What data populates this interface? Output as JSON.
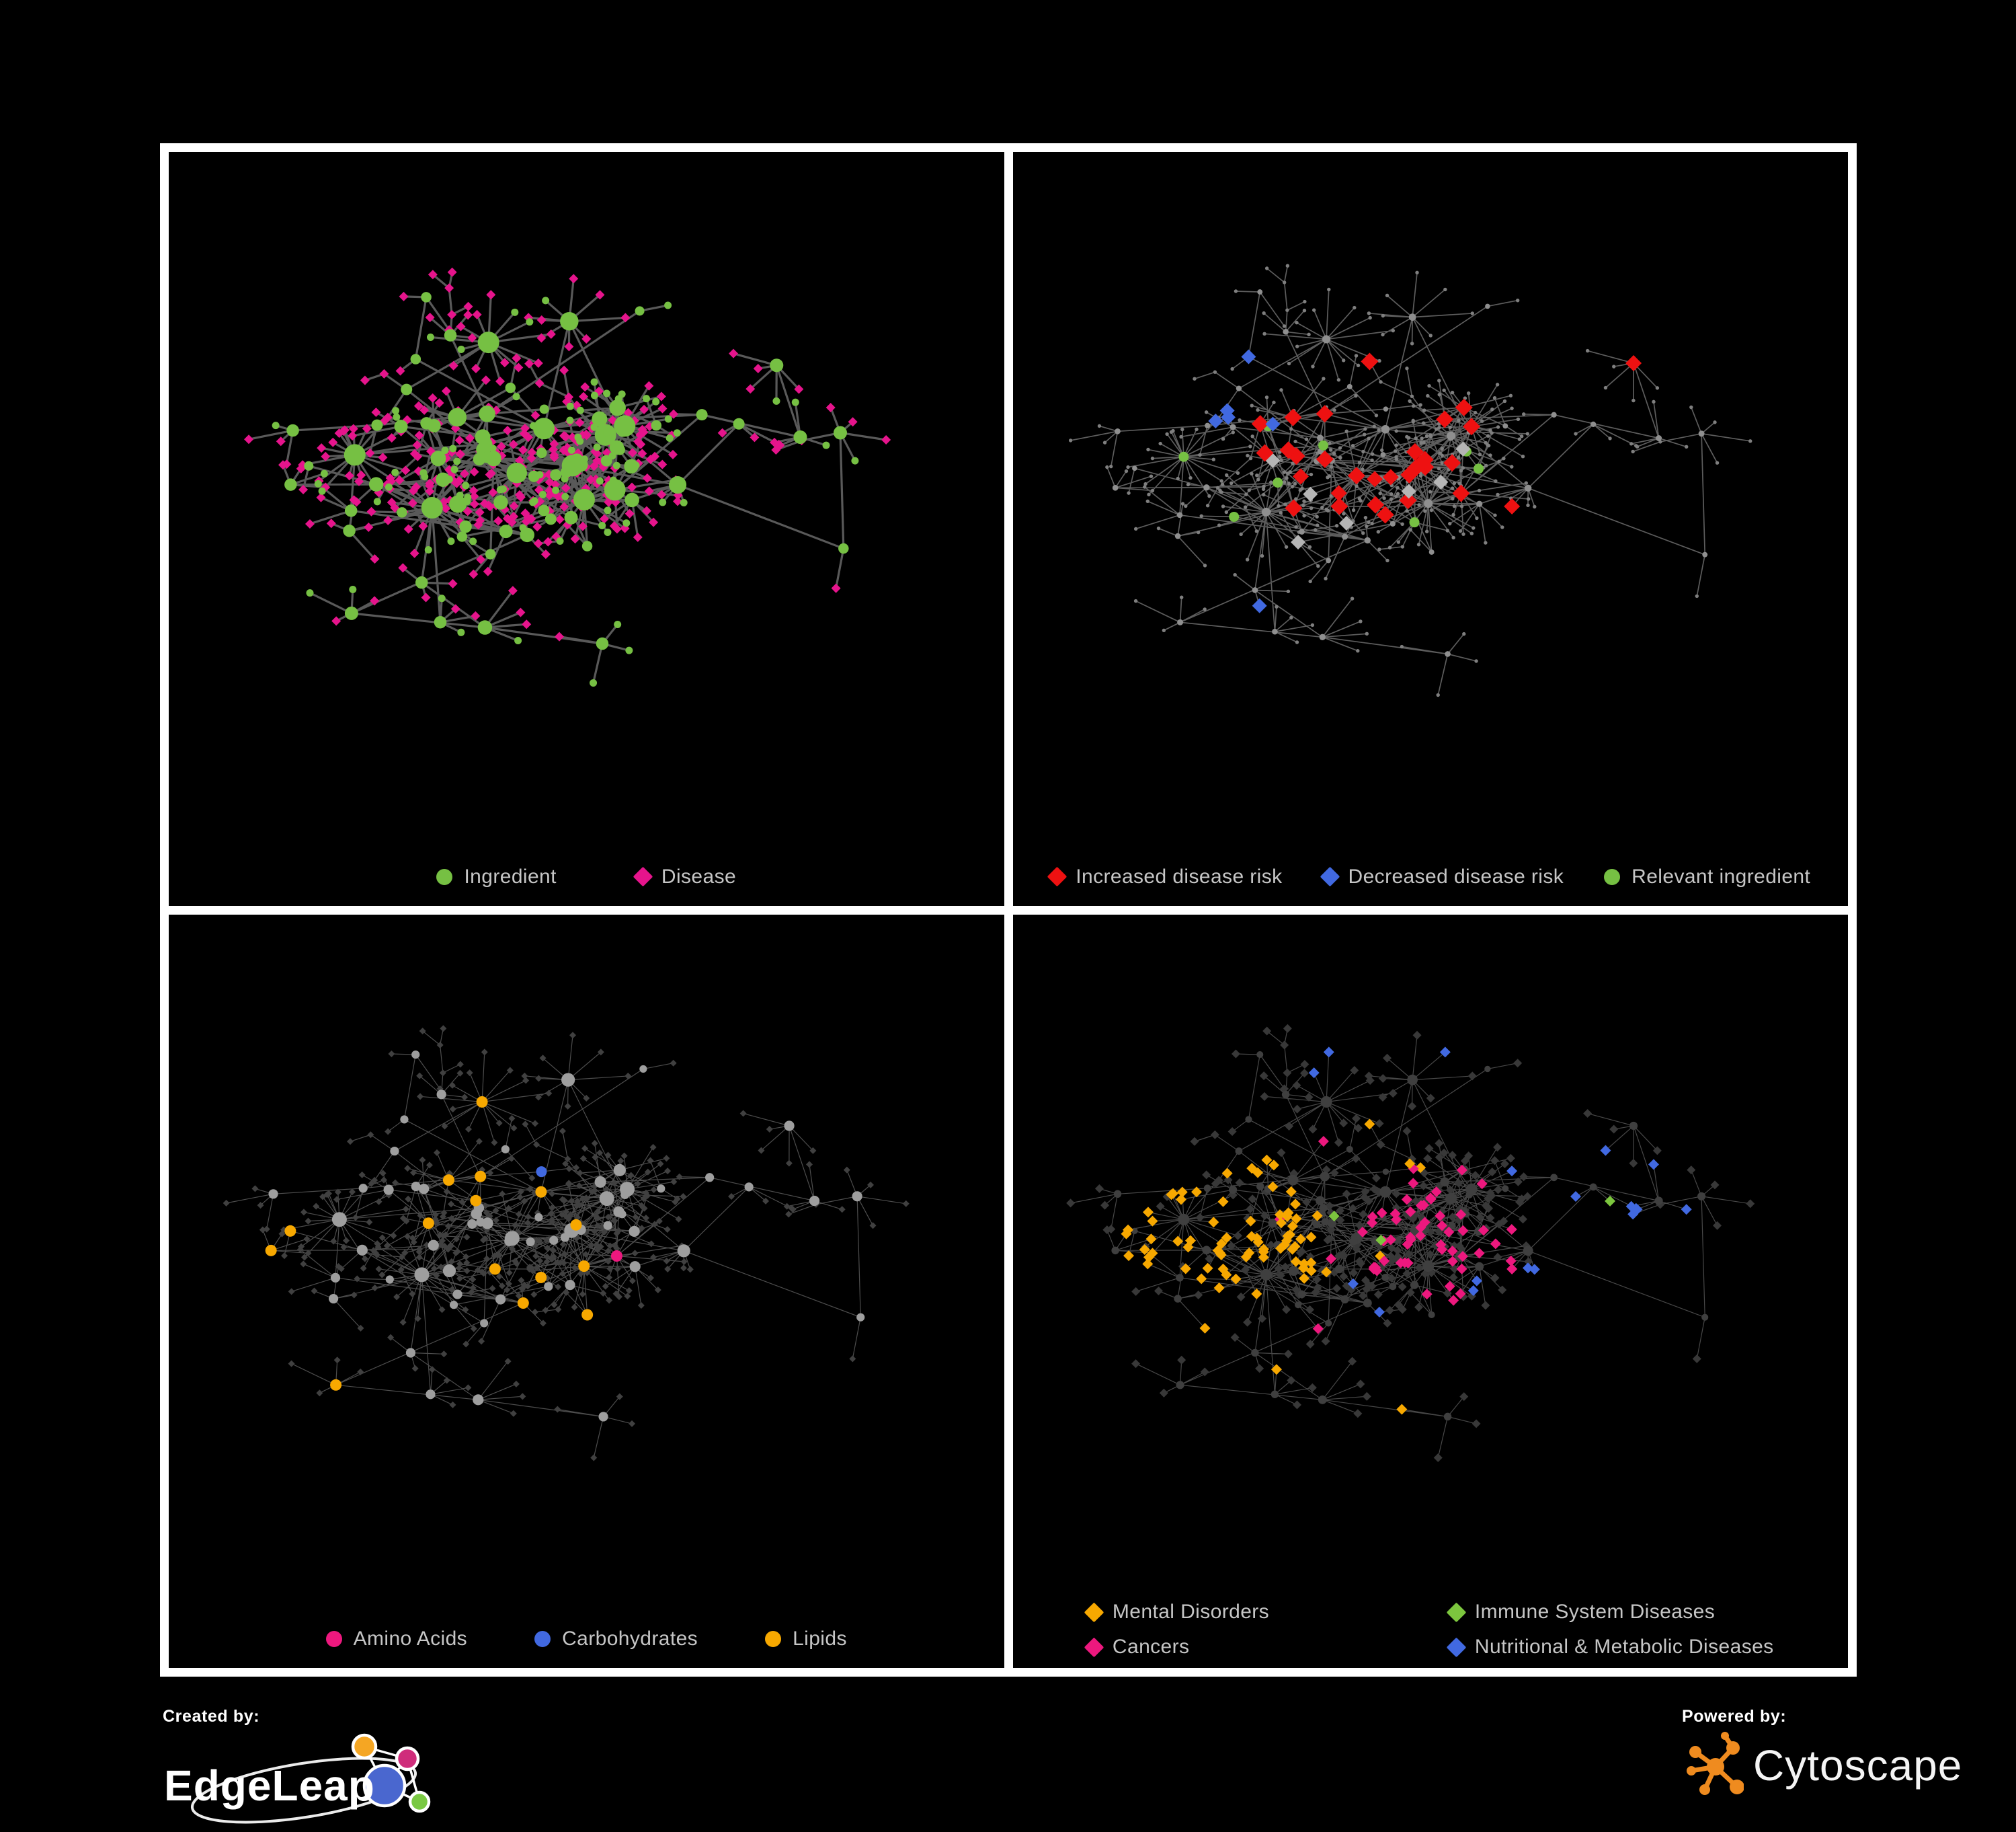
{
  "canvas": {
    "background": "#000000",
    "frame_color": "#ffffff"
  },
  "footer": {
    "created_by_label": "Created by:",
    "created_by_name": "EdgeLeap",
    "powered_by_label": "Powered by:",
    "powered_by_name": "Cytoscape",
    "edgeleap_colors": {
      "orange": "#f5a623",
      "pink": "#cf2d7b",
      "blue": "#4a67cf",
      "green": "#7ac943"
    },
    "cytoscape_orange": "#ef8b1f"
  },
  "network": {
    "seed": 20,
    "hub_count": 78,
    "cross_links": 20,
    "chain_prob": 0.3,
    "fan_prob": 0.16,
    "leaf_min": 0.022,
    "leaf_var": 0.05
  },
  "panels": [
    {
      "id": "ingredient-disease",
      "legend_gap": 118,
      "legend": [
        {
          "shape": "circle",
          "color": "#76c043",
          "label": "Ingredient"
        },
        {
          "shape": "diamond",
          "color": "#e6148c",
          "label": "Disease"
        }
      ],
      "style": {
        "seed": 3,
        "margins": [
          95,
          55,
          175
        ],
        "edge": {
          "color": "#6f6f6f",
          "width": 3.2,
          "opacity": 0.8
        },
        "base_hub": {
          "shape": "circle",
          "color": "#76c043",
          "size": 5.5,
          "size_deg": 0.75,
          "size_max": 16
        },
        "base_leaf": {
          "shape": "diamond",
          "color": "#e6148c",
          "size": 7
        },
        "highlights": [
          {
            "shape": "circle",
            "color": "#76c043",
            "size": 5.5,
            "p": 0.2,
            "max": 120,
            "leaf_only": true
          }
        ]
      }
    },
    {
      "id": "disease-risk",
      "legend_gap": 60,
      "legend": [
        {
          "shape": "diamond",
          "color": "#ee1111",
          "label": "Increased disease risk"
        },
        {
          "shape": "diamond",
          "color": "#4169e1",
          "label": "Decreased disease risk"
        },
        {
          "shape": "circle",
          "color": "#76c043",
          "label": "Relevant ingredient"
        }
      ],
      "style": {
        "seed": 11,
        "margins": [
          60,
          40,
          150
        ],
        "edge": {
          "color": "#6d6d6d",
          "width": 1.7,
          "opacity": 0.85
        },
        "base_hub": {
          "shape": "circle",
          "color": "#8f8f8f",
          "size": 3.4,
          "size_deg": 0.18,
          "size_max": 6.5
        },
        "base_leaf": {
          "shape": "circle",
          "color": "#7f7f7f",
          "size": 2.7
        },
        "highlights": [
          {
            "shape": "diamond",
            "color": "#4169e1",
            "size": 11,
            "p": 0.9,
            "max": 2,
            "region": [
              0.86,
              0.3,
              0.05
            ]
          },
          {
            "shape": "diamond",
            "color": "#4169e1",
            "size": 11,
            "p": 0.2,
            "max": 4,
            "region": [
              0.28,
              0.35,
              0.08
            ]
          },
          {
            "shape": "diamond",
            "color": "#ee1111",
            "size": 13,
            "p": 0.32,
            "max": 24,
            "region": [
              0.42,
              0.4,
              0.17
            ]
          },
          {
            "shape": "diamond",
            "color": "#ee1111",
            "size": 12,
            "p": 0.015,
            "max": 6,
            "region": null
          },
          {
            "shape": "diamond",
            "color": "#b5b5b5",
            "size": 11,
            "p": 0.07,
            "max": 7,
            "region": [
              0.45,
              0.45,
              0.2
            ]
          },
          {
            "shape": "circle",
            "color": "#76c043",
            "size": 7.5,
            "p": 0.3,
            "max": 17,
            "hub_only": true,
            "region": [
              0.4,
              0.38,
              0.24
            ]
          },
          {
            "shape": "diamond",
            "color": "#4169e1",
            "size": 11,
            "p": 0.006,
            "max": 2,
            "region": null
          }
        ]
      }
    },
    {
      "id": "nutrient-classes",
      "legend_gap": 100,
      "legend": [
        {
          "shape": "circle",
          "color": "#ed187e",
          "label": "Amino Acids"
        },
        {
          "shape": "circle",
          "color": "#4169e1",
          "label": "Carbohydrates"
        },
        {
          "shape": "circle",
          "color": "#f7a800",
          "label": "Lipids"
        }
      ],
      "style": {
        "seed": 5,
        "margins": [
          60,
          40,
          150
        ],
        "edge": {
          "color": "#9a9a9a",
          "width": 1.2,
          "opacity": 0.5
        },
        "base_hub": {
          "shape": "circle",
          "color": "#9e9e9e",
          "size": 4.6,
          "size_deg": 0.5,
          "size_max": 11
        },
        "base_leaf": {
          "shape": "diamond",
          "color": "#404040",
          "size": 5
        },
        "highlights": [
          {
            "shape": "circle",
            "color": "#4169e1",
            "size": 8,
            "p": 0.3,
            "max": 7,
            "hub_only": true,
            "region": [
              0.4,
              0.32,
              0.07
            ]
          },
          {
            "shape": "circle",
            "color": "#f7a800",
            "size": 8.5,
            "p": 0.75,
            "max": 34,
            "hub_only": true,
            "region": [
              0.4,
              0.32,
              0.105
            ]
          },
          {
            "shape": "circle",
            "color": "#f7a800",
            "size": 8.5,
            "p": 0.1,
            "max": 26,
            "hub_only": true,
            "region": null
          },
          {
            "shape": "circle",
            "color": "#4169e1",
            "size": 8,
            "p": 0.012,
            "max": 3,
            "hub_only": true,
            "region": null
          },
          {
            "shape": "circle",
            "color": "#ed187e",
            "size": 8.5,
            "p": 0.05,
            "max": 15,
            "hub_only": true,
            "region": null
          }
        ]
      }
    },
    {
      "id": "disease-classes",
      "legend_columns": 2,
      "legend": [
        {
          "shape": "diamond",
          "color": "#f7a800",
          "label": "Mental Disorders"
        },
        {
          "shape": "diamond",
          "color": "#7cc63e",
          "label": "Immune System Diseases"
        },
        {
          "shape": "diamond",
          "color": "#ed187e",
          "label": "Cancers"
        },
        {
          "shape": "diamond",
          "color": "#4169e1",
          "label": "Nutritional & Metabolic Diseases"
        }
      ],
      "style": {
        "seed": 8,
        "margins": [
          60,
          40,
          150
        ],
        "edge": {
          "color": "#6e6e6e",
          "width": 1.2,
          "opacity": 0.65
        },
        "base_hub": {
          "shape": "circle",
          "color": "#3f3f3f",
          "size": 4,
          "size_deg": 0.35,
          "size_max": 8.5
        },
        "base_leaf": {
          "shape": "diamond",
          "color": "#383838",
          "size": 6.5
        },
        "highlights": [
          {
            "shape": "diamond",
            "color": "#f7a800",
            "size": 8,
            "p": 0.75,
            "max": 70,
            "leaf_only": true,
            "region": [
              0.22,
              0.47,
              0.14
            ]
          },
          {
            "shape": "diamond",
            "color": "#f7a800",
            "size": 8,
            "p": 0.5,
            "max": 6,
            "leaf_only": true,
            "region": [
              0.38,
              0.08,
              0.06
            ]
          },
          {
            "shape": "diamond",
            "color": "#ed187e",
            "size": 8,
            "p": 0.55,
            "max": 48,
            "leaf_only": true,
            "region": [
              0.52,
              0.47,
              0.11
            ]
          },
          {
            "shape": "diamond",
            "color": "#ed187e",
            "size": 8,
            "p": 0.6,
            "max": 6,
            "leaf_only": true,
            "region": [
              0.85,
              0.22,
              0.05
            ]
          },
          {
            "shape": "diamond",
            "color": "#4169e1",
            "size": 8,
            "p": 0.4,
            "max": 26,
            "leaf_only": true,
            "region": [
              0.72,
              0.33,
              0.12
            ]
          },
          {
            "shape": "diamond",
            "color": "#4169e1",
            "size": 8,
            "p": 0.5,
            "max": 12,
            "leaf_only": true,
            "region": [
              0.6,
              0.54,
              0.06
            ]
          },
          {
            "shape": "diamond",
            "color": "#4169e1",
            "size": 8,
            "p": 0.12,
            "max": 14,
            "leaf_only": true,
            "region": [
              0.45,
              0.1,
              0.2
            ]
          },
          {
            "shape": "diamond",
            "color": "#f7a800",
            "size": 8,
            "p": 0.04,
            "max": 18,
            "leaf_only": true,
            "region": null
          },
          {
            "shape": "diamond",
            "color": "#4169e1",
            "size": 8,
            "p": 0.03,
            "max": 22,
            "leaf_only": true,
            "region": null
          },
          {
            "shape": "diamond",
            "color": "#ed187e",
            "size": 8,
            "p": 0.018,
            "max": 10,
            "leaf_only": true,
            "region": null
          },
          {
            "shape": "diamond",
            "color": "#7cc63e",
            "size": 8,
            "p": 0.012,
            "max": 8,
            "leaf_only": true,
            "region": null
          }
        ]
      }
    }
  ]
}
